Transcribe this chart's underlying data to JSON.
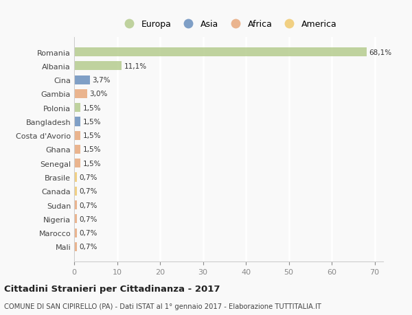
{
  "categories": [
    "Romania",
    "Albania",
    "Cina",
    "Gambia",
    "Polonia",
    "Bangladesh",
    "Costa d'Avorio",
    "Ghana",
    "Senegal",
    "Brasile",
    "Canada",
    "Sudan",
    "Nigeria",
    "Marocco",
    "Mali"
  ],
  "values": [
    68.1,
    11.1,
    3.7,
    3.0,
    1.5,
    1.5,
    1.5,
    1.5,
    1.5,
    0.7,
    0.7,
    0.7,
    0.7,
    0.7,
    0.7
  ],
  "labels": [
    "68,1%",
    "11,1%",
    "3,7%",
    "3,0%",
    "1,5%",
    "1,5%",
    "1,5%",
    "1,5%",
    "1,5%",
    "0,7%",
    "0,7%",
    "0,7%",
    "0,7%",
    "0,7%",
    "0,7%"
  ],
  "bar_colors": [
    "#b5cc8e",
    "#b5cc8e",
    "#6a8fbe",
    "#e8a87c",
    "#b5cc8e",
    "#6a8fbe",
    "#e8a87c",
    "#e8a87c",
    "#e8a87c",
    "#f0c96e",
    "#f0c96e",
    "#e8a87c",
    "#e8a87c",
    "#e8a87c",
    "#e8a87c"
  ],
  "legend": [
    {
      "label": "Europa",
      "color": "#b5cc8e"
    },
    {
      "label": "Asia",
      "color": "#6a8fbe"
    },
    {
      "label": "Africa",
      "color": "#e8a87c"
    },
    {
      "label": "America",
      "color": "#f0c96e"
    }
  ],
  "xlim": [
    0,
    72
  ],
  "xticks": [
    0,
    10,
    20,
    30,
    40,
    50,
    60,
    70
  ],
  "title": "Cittadini Stranieri per Cittadinanza - 2017",
  "subtitle": "COMUNE DI SAN CIPIRELLO (PA) - Dati ISTAT al 1° gennaio 2017 - Elaborazione TUTTITALIA.IT",
  "background_color": "#f9f9f9",
  "grid_color": "#ffffff",
  "bar_alpha": 0.85
}
